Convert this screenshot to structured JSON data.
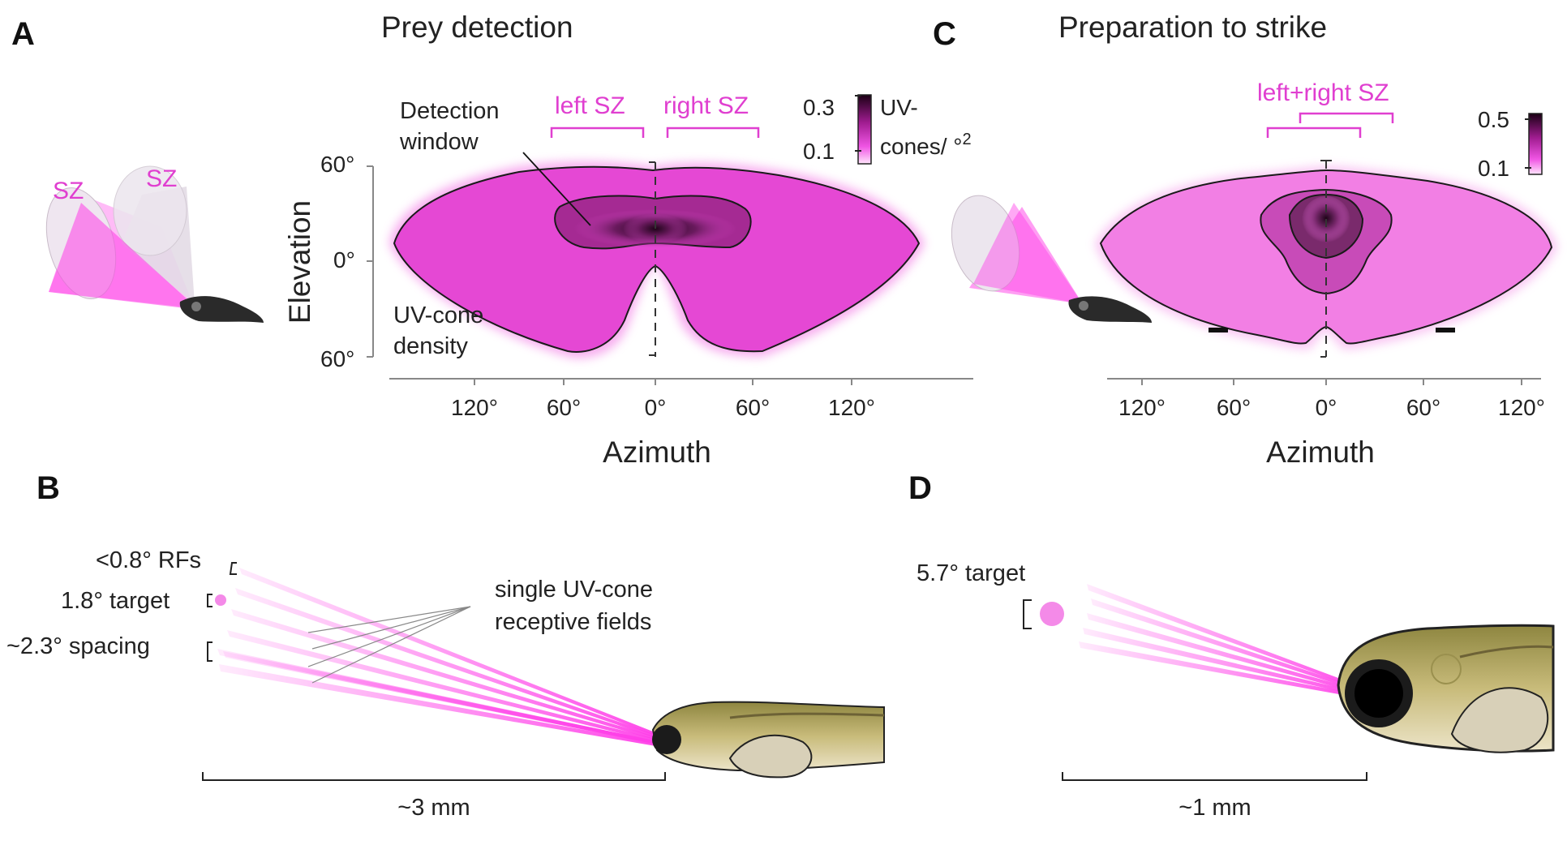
{
  "colors": {
    "magenta": "#e03fd0",
    "bright_magenta": "#ff3de8",
    "dark": "#2a0a22",
    "fish": "#b9a864"
  },
  "panel_a": {
    "letter": "A",
    "title": "Prey detection",
    "sz_label_1": "SZ",
    "sz_label_2": "SZ",
    "left_sz": "left SZ",
    "right_sz": "right SZ",
    "detection_line1": "Detection",
    "detection_line2": "window",
    "density_line1": "UV-cone",
    "density_line2": "density",
    "ylabel": "Elevation",
    "xlabel": "Azimuth",
    "yticks": [
      "60°",
      "0°",
      "60°"
    ],
    "xticks": [
      "120°",
      "60°",
      "0°",
      "60°",
      "120°"
    ],
    "colorbar": {
      "max": "0.3",
      "min": "0.1",
      "label_line1": "UV-",
      "label_line2": "cones/ °",
      "label_sup": "2"
    }
  },
  "panel_b": {
    "letter": "B",
    "rf_label": "<0.8° RFs",
    "target_label": "1.8° target",
    "spacing_label": "~2.3° spacing",
    "single_line1": "single UV-cone",
    "single_line2": "receptive fields",
    "scale": "~3 mm"
  },
  "panel_c": {
    "letter": "C",
    "title": "Preparation to strike",
    "lr_sz": "left+right SZ",
    "xlabel": "Azimuth",
    "xticks": [
      "120°",
      "60°",
      "0°",
      "60°",
      "120°"
    ],
    "colorbar": {
      "max": "0.5",
      "min": "0.1"
    }
  },
  "panel_d": {
    "letter": "D",
    "target_label": "5.7° target",
    "scale": "~1 mm"
  }
}
